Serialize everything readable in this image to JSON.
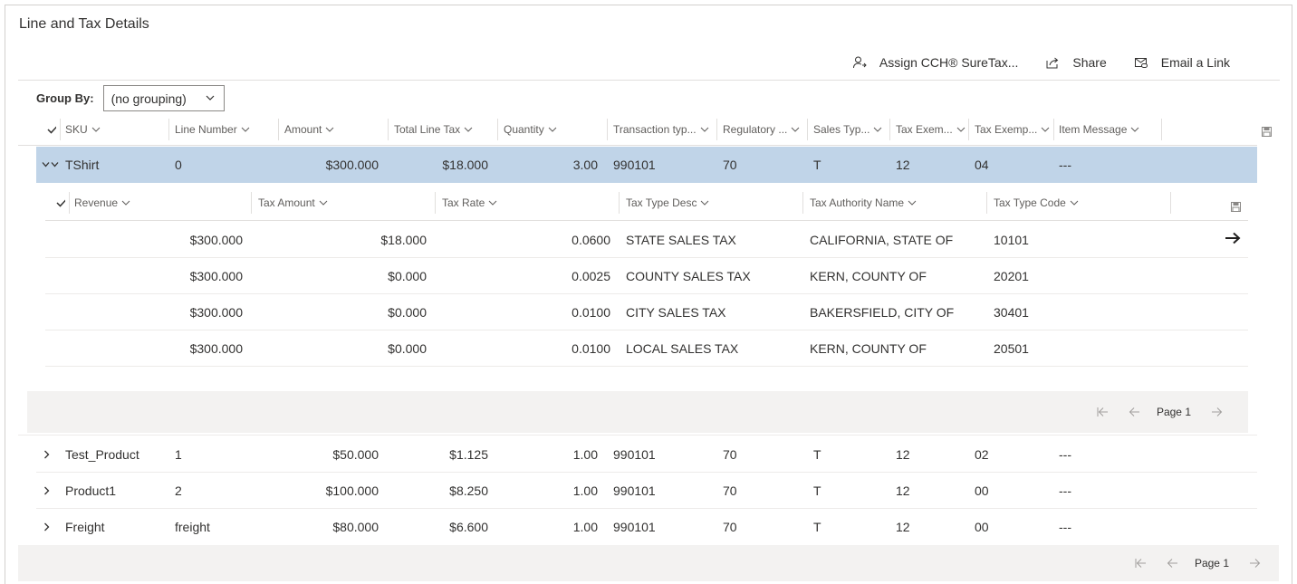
{
  "panel": {
    "title": "Line and Tax Details"
  },
  "commands": {
    "assign": "Assign CCH® SureTax...",
    "share": "Share",
    "email": "Email a Link"
  },
  "groupby": {
    "label": "Group By:",
    "value": "(no grouping)"
  },
  "columns": {
    "sku": "SKU",
    "line_number": "Line Number",
    "amount": "Amount",
    "total_line_tax": "Total Line Tax",
    "quantity": "Quantity",
    "transaction_type": "Transaction typ...",
    "regulatory": "Regulatory ...",
    "sales_type": "Sales Typ...",
    "tax_exem": "Tax Exem...",
    "tax_exemp": "Tax Exemp...",
    "item_message": "Item Message"
  },
  "rows": [
    {
      "sku": "TShirt",
      "line": "0",
      "amount": "$300.000",
      "tax": "$18.000",
      "qty": "3.00",
      "trans": "990101",
      "reg": "70",
      "sales": "T",
      "exem": "12",
      "exemp": "04",
      "msg": "---"
    },
    {
      "sku": "Test_Product",
      "line": "1",
      "amount": "$50.000",
      "tax": "$1.125",
      "qty": "1.00",
      "trans": "990101",
      "reg": "70",
      "sales": "T",
      "exem": "12",
      "exemp": "02",
      "msg": "---"
    },
    {
      "sku": "Product1",
      "line": "2",
      "amount": "$100.000",
      "tax": "$8.250",
      "qty": "1.00",
      "trans": "990101",
      "reg": "70",
      "sales": "T",
      "exem": "12",
      "exemp": "00",
      "msg": "---"
    },
    {
      "sku": "Freight",
      "line": "freight",
      "amount": "$80.000",
      "tax": "$6.600",
      "qty": "1.00",
      "trans": "990101",
      "reg": "70",
      "sales": "T",
      "exem": "12",
      "exemp": "00",
      "msg": "---"
    }
  ],
  "sub_columns": {
    "revenue": "Revenue",
    "tax_amount": "Tax Amount",
    "tax_rate": "Tax Rate",
    "tax_type_desc": "Tax Type Desc",
    "tax_authority_name": "Tax Authority Name",
    "tax_type_code": "Tax Type Code"
  },
  "sub_rows": [
    {
      "revenue": "$300.000",
      "tax_amount": "$18.000",
      "tax_rate": "0.0600",
      "desc": "STATE SALES TAX",
      "authority": "CALIFORNIA, STATE OF",
      "code": "10101"
    },
    {
      "revenue": "$300.000",
      "tax_amount": "$0.000",
      "tax_rate": "0.0025",
      "desc": "COUNTY SALES TAX",
      "authority": "KERN, COUNTY OF",
      "code": "20201"
    },
    {
      "revenue": "$300.000",
      "tax_amount": "$0.000",
      "tax_rate": "0.0100",
      "desc": "CITY SALES TAX",
      "authority": "BAKERSFIELD, CITY OF",
      "code": "30401"
    },
    {
      "revenue": "$300.000",
      "tax_amount": "$0.000",
      "tax_rate": "0.0100",
      "desc": "LOCAL SALES TAX",
      "authority": "KERN, COUNTY OF",
      "code": "20501"
    }
  ],
  "sub_pager": {
    "label": "Page 1"
  },
  "main_pager": {
    "label": "Page 1"
  },
  "icons": {
    "assign": "person-add-icon",
    "share": "share-icon",
    "email": "email-link-icon",
    "more": "more-vertical-icon",
    "save": "save-icon",
    "open": "arrow-right-icon"
  }
}
